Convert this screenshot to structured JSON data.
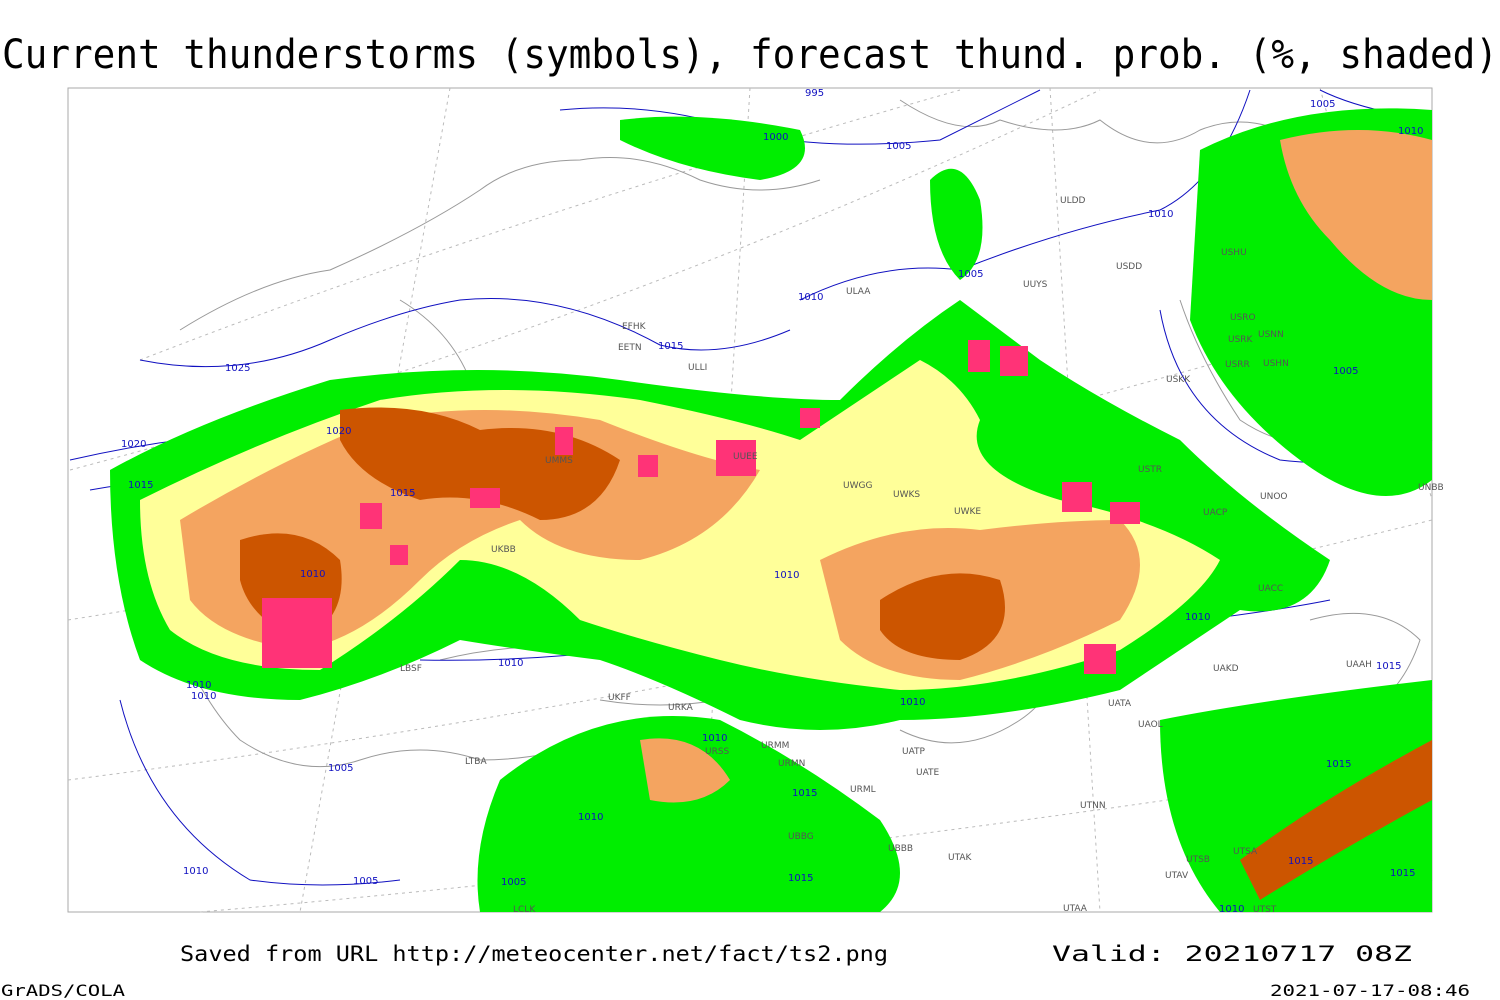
{
  "header": {
    "title": "Current thunderstorms (symbols), forecast thund. prob. (%, shaded)"
  },
  "footer": {
    "source": "Saved from URL http://meteocenter.net/fact/ts2.png",
    "valid": "Valid: 20210717 08Z",
    "software": "GrADS/COLA",
    "timestamp": "2021-07-17-08:46"
  },
  "isobar_labels": [
    "995",
    "1000",
    "1005",
    "1005",
    "1010",
    "1010",
    "1010",
    "1005",
    "1015",
    "1025",
    "1020",
    "1020",
    "1015",
    "1015",
    "1010",
    "1010",
    "1010",
    "1010",
    "1010",
    "1010",
    "1010",
    "1005",
    "1005",
    "1010",
    "1015",
    "1010",
    "1015",
    "1005",
    "1010",
    "1005",
    "1015",
    "1015",
    "1015",
    "1015",
    "1010"
  ],
  "stations": [
    "ULDD",
    "USDD",
    "UUYS",
    "ULAA",
    "USHU",
    "USRO",
    "USRK",
    "USNN",
    "USRR",
    "USHN",
    "USKK",
    "EFHK",
    "EETN",
    "ULLI",
    "UWGG",
    "UWKS",
    "UWKE",
    "USTR",
    "UNOO",
    "UNBB",
    "UACP",
    "UACC",
    "UAKD",
    "UAAH",
    "UATA",
    "UAOL",
    "UATE",
    "UATP",
    "UTNN",
    "UTAK",
    "UTSB",
    "UTSA",
    "UTAV",
    "UTAA",
    "UTST",
    "URMM",
    "URMN",
    "URML",
    "URSS",
    "UKFF",
    "URKA",
    "UKBB",
    "UUEE",
    "UMMS",
    "LBSF",
    "UBBB",
    "UBBG",
    "LTBA",
    "LCLK"
  ]
}
